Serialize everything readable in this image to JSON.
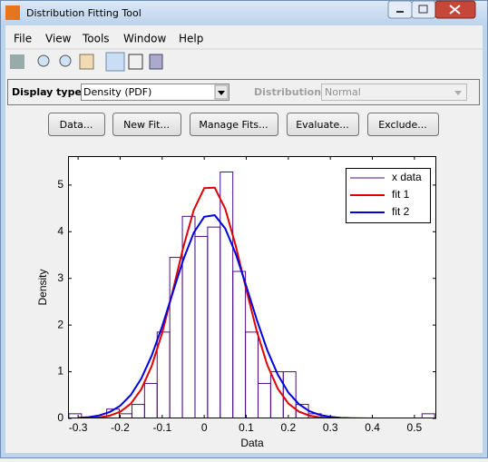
{
  "window": {
    "title": "Distribution Fitting Tool"
  },
  "menu": [
    "File",
    "View",
    "Tools",
    "Window",
    "Help"
  ],
  "display_type": {
    "label": "Display type:",
    "value": "Density (PDF)"
  },
  "distribution": {
    "label": "Distribution:",
    "value": "Normal"
  },
  "buttons": [
    "Data...",
    "New Fit...",
    "Manage Fits...",
    "Evaluate...",
    "Exclude..."
  ],
  "chart_data": {
    "type": "histogram",
    "xlabel": "Data",
    "ylabel": "Density",
    "xlim": [
      -0.324,
      0.552
    ],
    "ylim": [
      0,
      5.62
    ],
    "xticks": [
      -0.3,
      -0.2,
      -0.1,
      0,
      0.1,
      0.2,
      0.3,
      0.4,
      0.5
    ],
    "yticks": [
      0,
      1,
      2,
      3,
      4,
      5
    ],
    "legend": "upper right",
    "bins": [
      -0.322,
      -0.292,
      -0.262,
      -0.232,
      -0.202,
      -0.172,
      -0.142,
      -0.112,
      -0.082,
      -0.052,
      -0.022,
      0.008,
      0.038,
      0.068,
      0.098,
      0.128,
      0.158,
      0.188,
      0.218,
      0.248,
      0.278,
      0.308,
      0.338,
      0.368,
      0.398,
      0.428,
      0.458,
      0.488,
      0.518,
      0.548
    ],
    "x": [
      -0.3,
      -0.275,
      -0.25,
      -0.225,
      -0.2,
      -0.175,
      -0.15,
      -0.125,
      -0.1,
      -0.075,
      -0.05,
      -0.025,
      0,
      0.025,
      0.05,
      0.075,
      0.1,
      0.125,
      0.15,
      0.175,
      0.2,
      0.225,
      0.25,
      0.275,
      0.3,
      0.325,
      0.35,
      0.375,
      0.4,
      0.425,
      0.45,
      0.475,
      0.5
    ],
    "series": [
      {
        "name": "x data",
        "type": "histogram",
        "color": "#4b0c82",
        "values": [
          0.1,
          0,
          0,
          0.2,
          0.1,
          0.3,
          0.75,
          1.85,
          3.45,
          4.33,
          3.9,
          4.1,
          5.28,
          3.15,
          1.85,
          0.75,
          1.0,
          1.0,
          0.3,
          0.1,
          0,
          0,
          0,
          0,
          0,
          0,
          0,
          0,
          0.1
        ]
      },
      {
        "name": "fit 1",
        "type": "line",
        "color": "#e00000",
        "values": [
          0.002,
          0.007,
          0.022,
          0.059,
          0.142,
          0.312,
          0.621,
          1.122,
          1.834,
          2.722,
          3.662,
          4.464,
          4.934,
          4.944,
          4.491,
          3.697,
          2.76,
          1.867,
          1.145,
          0.637,
          0.321,
          0.147,
          0.061,
          0.023,
          0.008,
          0.002,
          0.001,
          0,
          0,
          0,
          0,
          0,
          0
        ]
      },
      {
        "name": "fit 2",
        "type": "line",
        "color": "#0000e0",
        "values": [
          0.011,
          0.028,
          0.064,
          0.136,
          0.27,
          0.498,
          0.85,
          1.345,
          1.975,
          2.689,
          3.396,
          3.977,
          4.321,
          4.354,
          4.069,
          3.526,
          2.835,
          2.113,
          1.461,
          0.937,
          0.557,
          0.307,
          0.157,
          0.075,
          0.033,
          0.013,
          0.005,
          0.002,
          0.001,
          0,
          0,
          0,
          0
        ]
      }
    ]
  }
}
